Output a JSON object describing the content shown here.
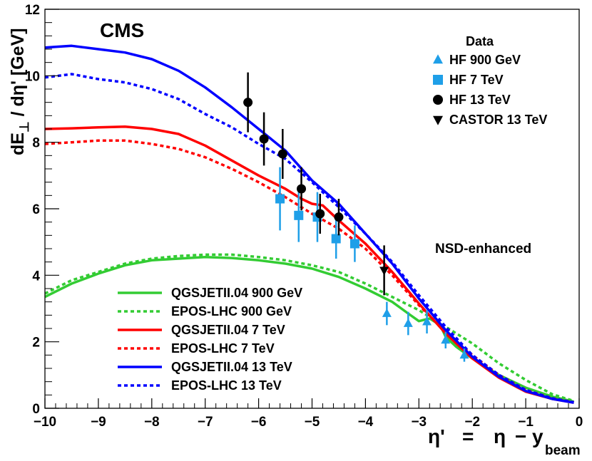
{
  "chart_data": {
    "type": "line",
    "experiment": "CMS",
    "annotation": "NSD-enhanced",
    "ylabel": {
      "main": "dE",
      "sub": "⊥",
      "tail": " / dη' [GeV]"
    },
    "xlabel": {
      "prime": "η'",
      "eq": "=",
      "eta": "η",
      "minus": "−",
      "y": "y",
      "sub": "beam"
    },
    "xlim": [
      -10,
      0
    ],
    "ylim": [
      0,
      12
    ],
    "xticks": [
      -10,
      -9,
      -8,
      -7,
      -6,
      -5,
      -4,
      -3,
      -2,
      -1,
      0
    ],
    "xtick_labels": [
      "−10",
      "−9",
      "−8",
      "−7",
      "−6",
      "−5",
      "−4",
      "−3",
      "−2",
      "−1",
      "0"
    ],
    "yticks": [
      0,
      2,
      4,
      6,
      8,
      10,
      12
    ],
    "ytick_labels": [
      "0",
      "2",
      "4",
      "6",
      "8",
      "10",
      "12"
    ],
    "colors": {
      "green": "#33cc33",
      "red": "#ff0000",
      "blue": "#0000ff",
      "lightblue": "#1f9fe8",
      "black": "#000000"
    },
    "series": [
      {
        "name": "QGSJETII.04 900 GeV",
        "color": "#33cc33",
        "dash": "solid",
        "x": [
          -10,
          -9.5,
          -9,
          -8.5,
          -8,
          -7.5,
          -7,
          -6.5,
          -6,
          -5.5,
          -5,
          -4.5,
          -4,
          -3.5,
          -3.2,
          -3,
          -2.8,
          -2.6,
          -2.5,
          -2.3,
          -2,
          -1.5,
          -1,
          -0.5,
          -0.1
        ],
        "y": [
          3.35,
          3.75,
          4.05,
          4.3,
          4.45,
          4.5,
          4.55,
          4.52,
          4.45,
          4.35,
          4.2,
          3.95,
          3.6,
          3.2,
          2.85,
          2.62,
          2.7,
          2.5,
          2.15,
          1.85,
          1.5,
          1.0,
          0.62,
          0.35,
          0.2
        ]
      },
      {
        "name": "EPOS-LHC 900 GeV",
        "color": "#33cc33",
        "dash": "dashed",
        "x": [
          -10,
          -9.5,
          -9,
          -8.5,
          -8,
          -7.5,
          -7,
          -6.5,
          -6,
          -5.5,
          -5,
          -4.5,
          -4,
          -3.5,
          -3,
          -2.5,
          -2,
          -1.5,
          -1,
          -0.5,
          -0.1
        ],
        "y": [
          3.45,
          3.85,
          4.1,
          4.35,
          4.5,
          4.58,
          4.62,
          4.62,
          4.55,
          4.45,
          4.3,
          4.1,
          3.75,
          3.35,
          2.95,
          2.45,
          1.95,
          1.35,
          0.85,
          0.42,
          0.22
        ]
      },
      {
        "name": "QGSJETII.04 7 TeV",
        "color": "#ff0000",
        "dash": "solid",
        "x": [
          -10,
          -9.5,
          -9,
          -8.5,
          -8,
          -7.5,
          -7,
          -6.5,
          -6,
          -5.5,
          -5.2,
          -5,
          -4.8,
          -4.5,
          -4,
          -3.5,
          -3,
          -2.5,
          -2,
          -1.5,
          -1,
          -0.5,
          -0.1
        ],
        "y": [
          8.4,
          8.42,
          8.45,
          8.47,
          8.4,
          8.25,
          7.9,
          7.45,
          7.0,
          6.6,
          6.3,
          6.15,
          6.1,
          5.65,
          4.95,
          4.1,
          3.15,
          2.25,
          1.5,
          0.92,
          0.5,
          0.28,
          0.17
        ]
      },
      {
        "name": "EPOS-LHC 7 TeV",
        "color": "#ff0000",
        "dash": "dashed",
        "x": [
          -10,
          -9.5,
          -9,
          -8.5,
          -8,
          -7.5,
          -7,
          -6.5,
          -6,
          -5.5,
          -5,
          -4.5,
          -4,
          -3.5,
          -3,
          -2.5,
          -2,
          -1.5,
          -1,
          -0.5,
          -0.1
        ],
        "y": [
          7.95,
          8.0,
          8.05,
          8.05,
          7.95,
          7.8,
          7.55,
          7.2,
          6.8,
          6.35,
          5.85,
          5.4,
          4.8,
          4.0,
          3.1,
          2.3,
          1.6,
          1.0,
          0.55,
          0.3,
          0.18
        ]
      },
      {
        "name": "QGSJETII.04 13 TeV",
        "color": "#0000ff",
        "dash": "solid",
        "x": [
          -10,
          -9.5,
          -9,
          -8.5,
          -8,
          -7.5,
          -7,
          -6.5,
          -6,
          -5.5,
          -5,
          -4.5,
          -4,
          -3.5,
          -3,
          -2.5,
          -2,
          -1.5,
          -1,
          -0.5,
          -0.1
        ],
        "y": [
          10.85,
          10.9,
          10.8,
          10.7,
          10.5,
          10.15,
          9.65,
          9.05,
          8.4,
          7.75,
          6.85,
          6.15,
          5.25,
          4.35,
          3.3,
          2.35,
          1.55,
          0.95,
          0.52,
          0.28,
          0.17
        ]
      },
      {
        "name": "EPOS-LHC 13 TeV",
        "color": "#0000ff",
        "dash": "dashed",
        "x": [
          -10,
          -9.5,
          -9,
          -8.5,
          -8,
          -7.5,
          -7,
          -6.5,
          -6,
          -5.5,
          -5,
          -4.5,
          -4,
          -3.5,
          -3,
          -2.5,
          -2,
          -1.5,
          -1,
          -0.5,
          -0.1
        ],
        "y": [
          9.95,
          10.05,
          9.9,
          9.8,
          9.6,
          9.3,
          8.85,
          8.45,
          7.95,
          7.5,
          6.8,
          6.05,
          5.25,
          4.4,
          3.4,
          2.45,
          1.6,
          1.0,
          0.55,
          0.3,
          0.18
        ]
      }
    ],
    "data_series": [
      {
        "name": "HF 900 GeV",
        "marker": "triangle-up",
        "color": "#1f9fe8",
        "points": [
          {
            "x": -3.6,
            "y": 2.85,
            "err": 0.35
          },
          {
            "x": -3.2,
            "y": 2.55,
            "err": 0.35
          },
          {
            "x": -2.85,
            "y": 2.6,
            "err": 0.35
          },
          {
            "x": -2.5,
            "y": 2.05,
            "err": 0.25
          },
          {
            "x": -2.15,
            "y": 1.6,
            "err": 0.2
          }
        ]
      },
      {
        "name": "HF 7 TeV",
        "marker": "square",
        "color": "#1f9fe8",
        "points": [
          {
            "x": -5.6,
            "y": 6.3,
            "err": 0.95
          },
          {
            "x": -5.25,
            "y": 5.8,
            "err": 0.8
          },
          {
            "x": -4.9,
            "y": 5.75,
            "err": 0.75
          },
          {
            "x": -4.55,
            "y": 5.1,
            "err": 0.6
          },
          {
            "x": -4.2,
            "y": 4.95,
            "err": 0.55
          }
        ]
      },
      {
        "name": "HF 13 TeV",
        "marker": "circle",
        "color": "#000000",
        "points": [
          {
            "x": -6.2,
            "y": 9.2,
            "err": 0.9
          },
          {
            "x": -5.9,
            "y": 8.1,
            "err": 0.8
          },
          {
            "x": -5.55,
            "y": 7.65,
            "err": 0.75
          },
          {
            "x": -5.2,
            "y": 6.6,
            "err": 0.65
          },
          {
            "x": -4.85,
            "y": 5.85,
            "err": 0.6
          },
          {
            "x": -4.5,
            "y": 5.75,
            "err": 0.55
          }
        ]
      },
      {
        "name": "CASTOR 13 TeV",
        "marker": "triangle-down",
        "color": "#000000",
        "points": [
          {
            "x": -3.65,
            "y": 4.15,
            "err": 0.75
          }
        ]
      }
    ],
    "legend_data_title": "Data",
    "legend_data_placement": "top-right",
    "legend_models_placement": "bottom-left"
  }
}
